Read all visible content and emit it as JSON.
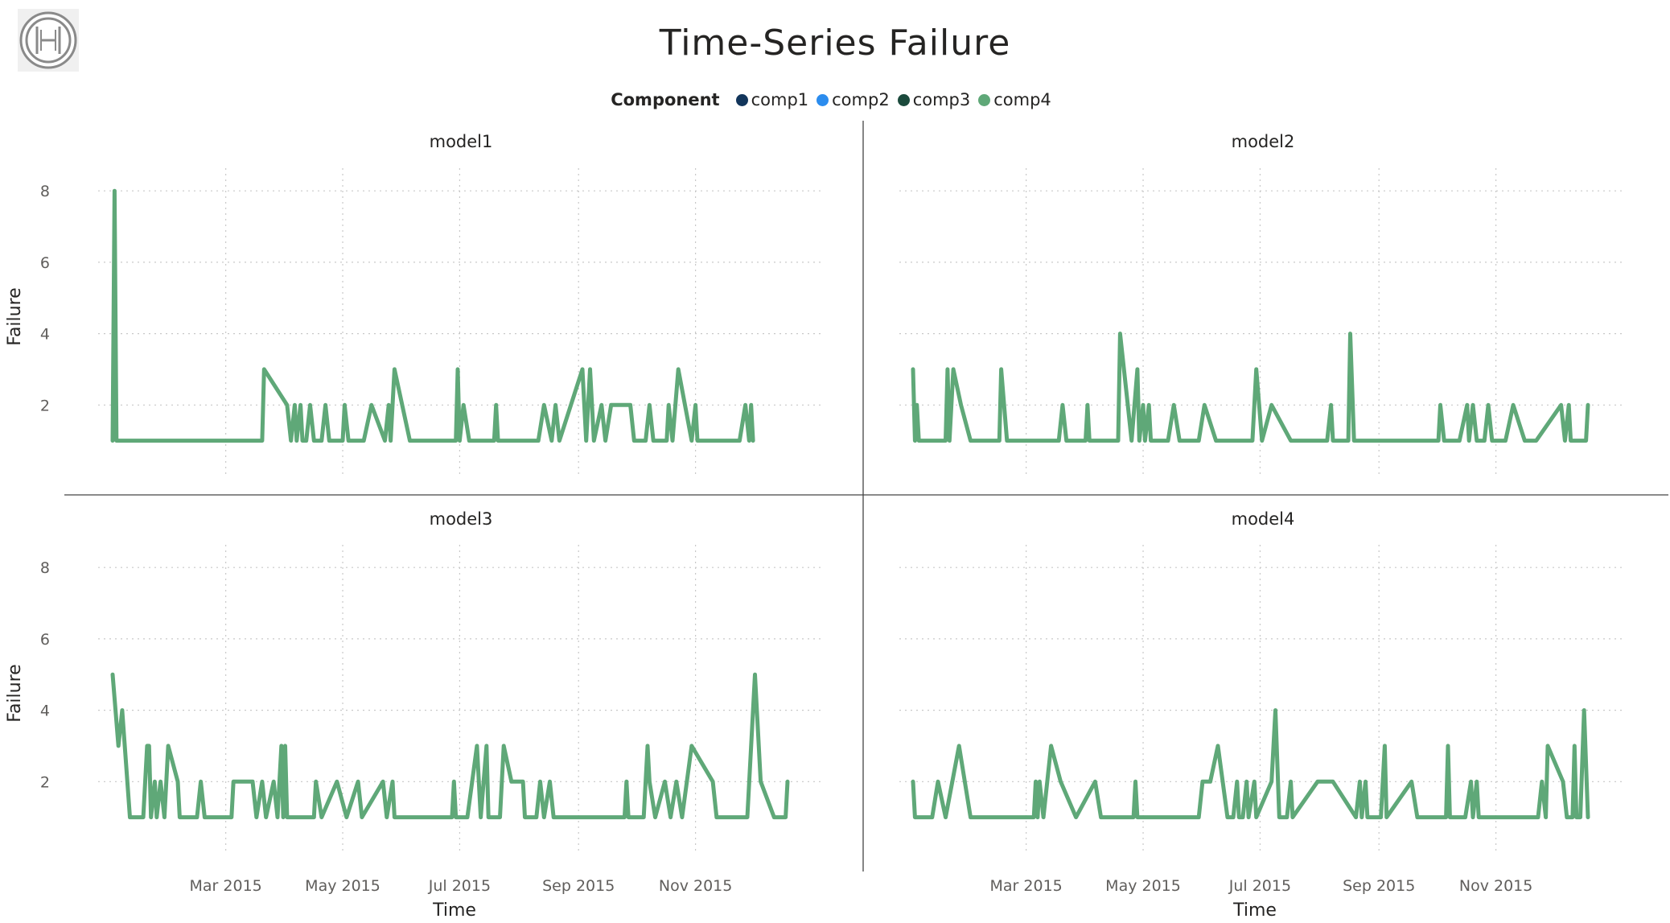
{
  "page": {
    "title": "Time-Series Failure"
  },
  "legend": {
    "title": "Component",
    "items": [
      {
        "label": "comp1",
        "color": "#12355b"
      },
      {
        "label": "comp2",
        "color": "#2b8cee"
      },
      {
        "label": "comp3",
        "color": "#1b4a3c"
      },
      {
        "label": "comp4",
        "color": "#5fa878"
      }
    ]
  },
  "chart_data": {
    "type": "line",
    "layout": "small-multiples",
    "xlabel": "Time",
    "ylabel": "Failure",
    "x_ticks": [
      "Mar 2015",
      "May 2015",
      "Jul 2015",
      "Sep 2015",
      "Nov 2015"
    ],
    "x_range": [
      "2015-01-01",
      "2016-01-01"
    ],
    "y_ticks": [
      2,
      4,
      6,
      8
    ],
    "ylim": [
      0,
      8.5
    ],
    "grid": true,
    "series_color": "#5fa878",
    "panels": [
      {
        "name": "model1",
        "points": [
          [
            "2015-01-01",
            1
          ],
          [
            "2015-01-02",
            8
          ],
          [
            "2015-01-03",
            1
          ],
          [
            "2015-03-20",
            1
          ],
          [
            "2015-03-21",
            3
          ],
          [
            "2015-04-02",
            2
          ],
          [
            "2015-04-04",
            1
          ],
          [
            "2015-04-06",
            2
          ],
          [
            "2015-04-07",
            1
          ],
          [
            "2015-04-09",
            2
          ],
          [
            "2015-04-10",
            1
          ],
          [
            "2015-04-12",
            1
          ],
          [
            "2015-04-14",
            2
          ],
          [
            "2015-04-16",
            1
          ],
          [
            "2015-04-20",
            1
          ],
          [
            "2015-04-22",
            2
          ],
          [
            "2015-04-24",
            1
          ],
          [
            "2015-05-01",
            1
          ],
          [
            "2015-05-02",
            2
          ],
          [
            "2015-05-04",
            1
          ],
          [
            "2015-05-12",
            1
          ],
          [
            "2015-05-16",
            2
          ],
          [
            "2015-05-23",
            1
          ],
          [
            "2015-05-25",
            2
          ],
          [
            "2015-05-26",
            1
          ],
          [
            "2015-05-28",
            3
          ],
          [
            "2015-06-05",
            1
          ],
          [
            "2015-06-29",
            1
          ],
          [
            "2015-06-30",
            3
          ],
          [
            "2015-07-01",
            1
          ],
          [
            "2015-07-03",
            2
          ],
          [
            "2015-07-06",
            1
          ],
          [
            "2015-07-19",
            1
          ],
          [
            "2015-07-20",
            2
          ],
          [
            "2015-07-21",
            1
          ],
          [
            "2015-08-11",
            1
          ],
          [
            "2015-08-14",
            2
          ],
          [
            "2015-08-18",
            1
          ],
          [
            "2015-08-20",
            2
          ],
          [
            "2015-08-22",
            1
          ],
          [
            "2015-09-03",
            3
          ],
          [
            "2015-09-05",
            1
          ],
          [
            "2015-09-07",
            3
          ],
          [
            "2015-09-09",
            1
          ],
          [
            "2015-09-13",
            2
          ],
          [
            "2015-09-15",
            1
          ],
          [
            "2015-09-18",
            2
          ],
          [
            "2015-09-28",
            2
          ],
          [
            "2015-09-30",
            1
          ],
          [
            "2015-10-06",
            1
          ],
          [
            "2015-10-08",
            2
          ],
          [
            "2015-10-10",
            1
          ],
          [
            "2015-10-17",
            1
          ],
          [
            "2015-10-18",
            2
          ],
          [
            "2015-10-20",
            1
          ],
          [
            "2015-10-23",
            3
          ],
          [
            "2015-10-30",
            1
          ],
          [
            "2015-11-01",
            2
          ],
          [
            "2015-11-02",
            1
          ],
          [
            "2015-11-24",
            1
          ],
          [
            "2015-11-27",
            2
          ],
          [
            "2015-11-29",
            1
          ],
          [
            "2015-11-30",
            2
          ],
          [
            "2015-12-01",
            1
          ]
        ]
      },
      {
        "name": "model2",
        "points": [
          [
            "2015-01-01",
            3
          ],
          [
            "2015-01-02",
            1
          ],
          [
            "2015-01-03",
            2
          ],
          [
            "2015-01-04",
            1
          ],
          [
            "2015-01-18",
            1
          ],
          [
            "2015-01-19",
            3
          ],
          [
            "2015-01-20",
            1
          ],
          [
            "2015-01-22",
            3
          ],
          [
            "2015-01-26",
            2
          ],
          [
            "2015-01-31",
            1
          ],
          [
            "2015-02-15",
            1
          ],
          [
            "2015-02-16",
            3
          ],
          [
            "2015-02-19",
            1
          ],
          [
            "2015-03-18",
            1
          ],
          [
            "2015-03-20",
            2
          ],
          [
            "2015-03-22",
            1
          ],
          [
            "2015-04-01",
            1
          ],
          [
            "2015-04-02",
            2
          ],
          [
            "2015-04-03",
            1
          ],
          [
            "2015-04-18",
            1
          ],
          [
            "2015-04-19",
            4
          ],
          [
            "2015-04-23",
            2
          ],
          [
            "2015-04-25",
            1
          ],
          [
            "2015-04-28",
            3
          ],
          [
            "2015-04-29",
            1
          ],
          [
            "2015-05-01",
            2
          ],
          [
            "2015-05-02",
            1
          ],
          [
            "2015-05-04",
            2
          ],
          [
            "2015-05-05",
            1
          ],
          [
            "2015-05-14",
            1
          ],
          [
            "2015-05-17",
            2
          ],
          [
            "2015-05-20",
            1
          ],
          [
            "2015-05-30",
            1
          ],
          [
            "2015-06-02",
            2
          ],
          [
            "2015-06-08",
            1
          ],
          [
            "2015-06-27",
            1
          ],
          [
            "2015-06-29",
            3
          ],
          [
            "2015-07-02",
            1
          ],
          [
            "2015-07-07",
            2
          ],
          [
            "2015-07-17",
            1
          ],
          [
            "2015-08-05",
            1
          ],
          [
            "2015-08-07",
            2
          ],
          [
            "2015-08-08",
            1
          ],
          [
            "2015-08-16",
            1
          ],
          [
            "2015-08-17",
            4
          ],
          [
            "2015-08-19",
            1
          ],
          [
            "2015-10-02",
            1
          ],
          [
            "2015-10-03",
            2
          ],
          [
            "2015-10-05",
            1
          ],
          [
            "2015-10-13",
            1
          ],
          [
            "2015-10-17",
            2
          ],
          [
            "2015-10-18",
            1
          ],
          [
            "2015-10-20",
            2
          ],
          [
            "2015-10-22",
            1
          ],
          [
            "2015-10-26",
            1
          ],
          [
            "2015-10-28",
            2
          ],
          [
            "2015-10-30",
            1
          ],
          [
            "2015-11-06",
            1
          ],
          [
            "2015-11-10",
            2
          ],
          [
            "2015-11-16",
            1
          ],
          [
            "2015-11-22",
            1
          ],
          [
            "2015-12-05",
            2
          ],
          [
            "2015-12-07",
            1
          ],
          [
            "2015-12-09",
            2
          ],
          [
            "2015-12-10",
            1
          ],
          [
            "2015-12-18",
            1
          ],
          [
            "2015-12-19",
            2
          ]
        ]
      },
      {
        "name": "model3",
        "points": [
          [
            "2015-01-01",
            5
          ],
          [
            "2015-01-04",
            3
          ],
          [
            "2015-01-06",
            4
          ],
          [
            "2015-01-10",
            1
          ],
          [
            "2015-01-17",
            1
          ],
          [
            "2015-01-19",
            3
          ],
          [
            "2015-01-20",
            3
          ],
          [
            "2015-01-21",
            1
          ],
          [
            "2015-01-23",
            2
          ],
          [
            "2015-01-24",
            1
          ],
          [
            "2015-01-26",
            2
          ],
          [
            "2015-01-28",
            1
          ],
          [
            "2015-01-30",
            3
          ],
          [
            "2015-02-04",
            2
          ],
          [
            "2015-02-05",
            1
          ],
          [
            "2015-02-14",
            1
          ],
          [
            "2015-02-16",
            2
          ],
          [
            "2015-02-18",
            1
          ],
          [
            "2015-03-04",
            1
          ],
          [
            "2015-03-05",
            2
          ],
          [
            "2015-03-15",
            2
          ],
          [
            "2015-03-17",
            1
          ],
          [
            "2015-03-20",
            2
          ],
          [
            "2015-03-22",
            1
          ],
          [
            "2015-03-26",
            2
          ],
          [
            "2015-03-28",
            1
          ],
          [
            "2015-03-30",
            3
          ],
          [
            "2015-03-31",
            1
          ],
          [
            "2015-04-01",
            3
          ],
          [
            "2015-04-02",
            1
          ],
          [
            "2015-04-16",
            1
          ],
          [
            "2015-04-17",
            2
          ],
          [
            "2015-04-20",
            1
          ],
          [
            "2015-04-28",
            2
          ],
          [
            "2015-05-03",
            1
          ],
          [
            "2015-05-09",
            2
          ],
          [
            "2015-05-11",
            1
          ],
          [
            "2015-05-22",
            2
          ],
          [
            "2015-05-24",
            1
          ],
          [
            "2015-05-27",
            2
          ],
          [
            "2015-05-28",
            1
          ],
          [
            "2015-06-27",
            1
          ],
          [
            "2015-06-28",
            2
          ],
          [
            "2015-06-29",
            1
          ],
          [
            "2015-07-05",
            1
          ],
          [
            "2015-07-10",
            3
          ],
          [
            "2015-07-12",
            1
          ],
          [
            "2015-07-15",
            3
          ],
          [
            "2015-07-16",
            1
          ],
          [
            "2015-07-22",
            1
          ],
          [
            "2015-07-24",
            3
          ],
          [
            "2015-07-28",
            2
          ],
          [
            "2015-08-03",
            2
          ],
          [
            "2015-08-04",
            1
          ],
          [
            "2015-08-10",
            1
          ],
          [
            "2015-08-12",
            2
          ],
          [
            "2015-08-14",
            1
          ],
          [
            "2015-08-17",
            2
          ],
          [
            "2015-08-19",
            1
          ],
          [
            "2015-09-25",
            1
          ],
          [
            "2015-09-26",
            2
          ],
          [
            "2015-09-27",
            1
          ],
          [
            "2015-10-05",
            1
          ],
          [
            "2015-10-07",
            3
          ],
          [
            "2015-10-08",
            2
          ],
          [
            "2015-10-11",
            1
          ],
          [
            "2015-10-16",
            2
          ],
          [
            "2015-10-19",
            1
          ],
          [
            "2015-10-22",
            2
          ],
          [
            "2015-10-25",
            1
          ],
          [
            "2015-10-30",
            3
          ],
          [
            "2015-11-10",
            2
          ],
          [
            "2015-11-12",
            1
          ],
          [
            "2015-11-28",
            1
          ],
          [
            "2015-12-02",
            5
          ],
          [
            "2015-12-05",
            2
          ],
          [
            "2015-12-12",
            1
          ],
          [
            "2015-12-18",
            1
          ],
          [
            "2015-12-19",
            2
          ]
        ]
      },
      {
        "name": "model4",
        "points": [
          [
            "2015-01-01",
            2
          ],
          [
            "2015-01-02",
            1
          ],
          [
            "2015-01-11",
            1
          ],
          [
            "2015-01-14",
            2
          ],
          [
            "2015-01-18",
            1
          ],
          [
            "2015-01-25",
            3
          ],
          [
            "2015-01-31",
            1
          ],
          [
            "2015-03-05",
            1
          ],
          [
            "2015-03-06",
            2
          ],
          [
            "2015-03-07",
            1
          ],
          [
            "2015-03-08",
            2
          ],
          [
            "2015-03-10",
            1
          ],
          [
            "2015-03-14",
            3
          ],
          [
            "2015-03-19",
            2
          ],
          [
            "2015-03-27",
            1
          ],
          [
            "2015-04-06",
            2
          ],
          [
            "2015-04-09",
            1
          ],
          [
            "2015-04-26",
            1
          ],
          [
            "2015-04-27",
            2
          ],
          [
            "2015-04-28",
            1
          ],
          [
            "2015-05-30",
            1
          ],
          [
            "2015-06-01",
            2
          ],
          [
            "2015-06-05",
            2
          ],
          [
            "2015-06-09",
            3
          ],
          [
            "2015-06-14",
            1
          ],
          [
            "2015-06-17",
            1
          ],
          [
            "2015-06-19",
            2
          ],
          [
            "2015-06-20",
            1
          ],
          [
            "2015-06-22",
            1
          ],
          [
            "2015-06-24",
            2
          ],
          [
            "2015-06-25",
            1
          ],
          [
            "2015-06-28",
            2
          ],
          [
            "2015-06-29",
            1
          ],
          [
            "2015-07-07",
            2
          ],
          [
            "2015-07-09",
            4
          ],
          [
            "2015-07-11",
            1
          ],
          [
            "2015-07-15",
            1
          ],
          [
            "2015-07-17",
            2
          ],
          [
            "2015-07-18",
            1
          ],
          [
            "2015-07-31",
            2
          ],
          [
            "2015-08-08",
            2
          ],
          [
            "2015-08-20",
            1
          ],
          [
            "2015-08-22",
            2
          ],
          [
            "2015-08-23",
            1
          ],
          [
            "2015-08-25",
            2
          ],
          [
            "2015-08-26",
            1
          ],
          [
            "2015-09-02",
            1
          ],
          [
            "2015-09-04",
            3
          ],
          [
            "2015-09-05",
            1
          ],
          [
            "2015-09-18",
            2
          ],
          [
            "2015-09-21",
            1
          ],
          [
            "2015-10-06",
            1
          ],
          [
            "2015-10-07",
            3
          ],
          [
            "2015-10-08",
            1
          ],
          [
            "2015-10-16",
            1
          ],
          [
            "2015-10-19",
            2
          ],
          [
            "2015-10-20",
            1
          ],
          [
            "2015-10-22",
            2
          ],
          [
            "2015-10-23",
            1
          ],
          [
            "2015-11-23",
            1
          ],
          [
            "2015-11-25",
            2
          ],
          [
            "2015-11-27",
            1
          ],
          [
            "2015-11-28",
            3
          ],
          [
            "2015-12-06",
            2
          ],
          [
            "2015-12-08",
            1
          ],
          [
            "2015-12-11",
            1
          ],
          [
            "2015-12-12",
            3
          ],
          [
            "2015-12-13",
            1
          ],
          [
            "2015-12-15",
            1
          ],
          [
            "2015-12-17",
            4
          ],
          [
            "2015-12-19",
            1
          ]
        ]
      }
    ]
  }
}
